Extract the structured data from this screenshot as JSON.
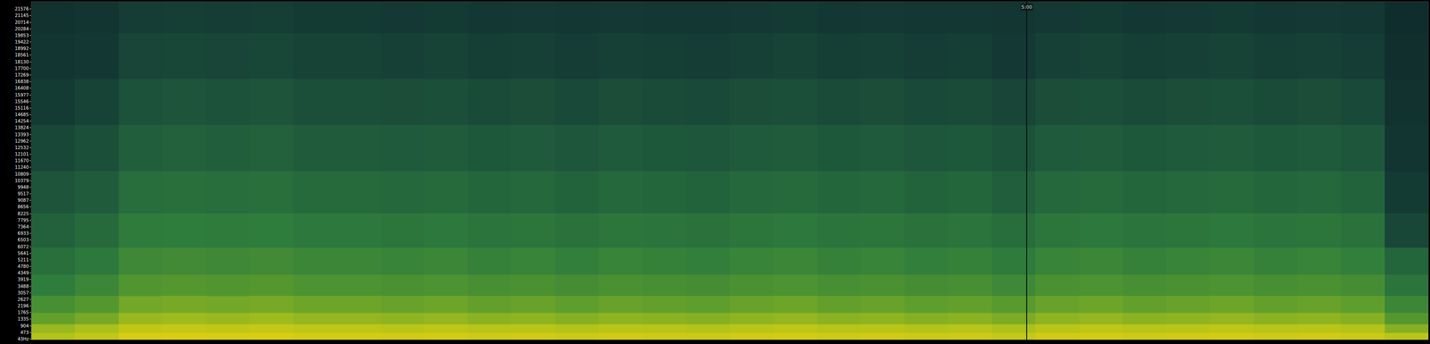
{
  "chart_data": {
    "type": "heatmap",
    "x": [
      0,
      1,
      2,
      3,
      4,
      5,
      6,
      7,
      8,
      9,
      10,
      11,
      12,
      13,
      14,
      15,
      16,
      17,
      18,
      19,
      20,
      21,
      22,
      23,
      24,
      25,
      26,
      27,
      28,
      29,
      30,
      31
    ],
    "y": [
      200,
      700,
      1300,
      2200,
      3500,
      5000,
      7000,
      9500,
      12500,
      15500,
      18500,
      21500
    ],
    "z": [
      [
        84,
        88,
        95,
        96,
        95,
        96,
        94,
        94,
        93,
        94,
        92,
        93,
        91,
        93,
        92,
        91,
        93,
        94,
        92,
        93,
        91,
        92,
        89,
        93,
        94,
        92,
        93,
        94,
        92,
        93,
        91,
        86
      ],
      [
        77,
        81,
        88,
        89,
        88,
        89,
        87,
        87,
        86,
        87,
        85,
        86,
        84,
        86,
        85,
        84,
        86,
        87,
        85,
        86,
        84,
        85,
        82,
        86,
        87,
        85,
        86,
        87,
        85,
        86,
        84,
        73
      ],
      [
        66,
        70,
        77,
        78,
        77,
        78,
        76,
        76,
        75,
        76,
        74,
        75,
        73,
        75,
        74,
        73,
        75,
        76,
        74,
        75,
        73,
        74,
        71,
        75,
        76,
        74,
        75,
        76,
        74,
        75,
        73,
        62
      ],
      [
        58,
        62,
        69,
        70,
        69,
        70,
        68,
        68,
        67,
        68,
        66,
        67,
        65,
        67,
        66,
        65,
        67,
        68,
        66,
        67,
        65,
        66,
        63,
        67,
        68,
        66,
        67,
        68,
        66,
        67,
        65,
        54
      ],
      [
        50,
        54,
        61,
        62,
        61,
        62,
        60,
        60,
        59,
        60,
        58,
        59,
        57,
        59,
        58,
        57,
        59,
        60,
        58,
        59,
        57,
        58,
        55,
        59,
        60,
        58,
        59,
        60,
        58,
        59,
        57,
        46
      ],
      [
        44,
        48,
        55,
        56,
        55,
        56,
        54,
        54,
        53,
        54,
        52,
        53,
        51,
        53,
        52,
        51,
        53,
        54,
        52,
        53,
        51,
        52,
        49,
        53,
        54,
        52,
        53,
        54,
        52,
        53,
        51,
        40
      ],
      [
        38,
        42,
        49,
        50,
        49,
        50,
        48,
        48,
        47,
        48,
        46,
        47,
        45,
        47,
        46,
        45,
        47,
        48,
        46,
        47,
        45,
        46,
        43,
        47,
        48,
        46,
        47,
        48,
        46,
        47,
        45,
        26
      ],
      [
        32,
        36,
        43,
        44,
        43,
        44,
        42,
        42,
        41,
        42,
        40,
        41,
        39,
        41,
        40,
        39,
        41,
        42,
        40,
        41,
        39,
        40,
        37,
        41,
        42,
        40,
        41,
        42,
        40,
        41,
        39,
        20
      ],
      [
        26,
        30,
        37,
        38,
        37,
        38,
        36,
        36,
        35,
        36,
        34,
        35,
        33,
        35,
        34,
        33,
        35,
        36,
        34,
        35,
        33,
        34,
        31,
        35,
        36,
        34,
        35,
        36,
        34,
        35,
        33,
        14
      ],
      [
        20,
        24,
        31,
        32,
        31,
        32,
        30,
        30,
        29,
        30,
        28,
        29,
        27,
        29,
        28,
        27,
        29,
        30,
        28,
        29,
        27,
        28,
        25,
        29,
        30,
        28,
        29,
        30,
        28,
        29,
        27,
        10
      ],
      [
        14,
        18,
        25,
        26,
        25,
        26,
        24,
        24,
        23,
        24,
        22,
        23,
        21,
        23,
        22,
        21,
        23,
        24,
        22,
        23,
        21,
        22,
        19,
        23,
        24,
        22,
        23,
        24,
        22,
        23,
        21,
        6
      ],
      [
        10,
        14,
        21,
        22,
        21,
        22,
        20,
        20,
        19,
        20,
        18,
        19,
        17,
        19,
        18,
        17,
        19,
        20,
        18,
        19,
        17,
        18,
        15,
        19,
        20,
        18,
        19,
        20,
        18,
        19,
        17,
        4
      ]
    ],
    "zlim": [
      0,
      100
    ],
    "xlim": [
      -0.5,
      31.5
    ],
    "ylim": [
      0,
      22050
    ],
    "yticks": [
      21576,
      21145,
      20714,
      20284,
      19853,
      19422,
      18992,
      18561,
      18130,
      17700,
      17269,
      16838,
      16408,
      15977,
      15546,
      15116,
      14685,
      14254,
      13824,
      13393,
      12962,
      12532,
      12101,
      11670,
      11240,
      10809,
      10379,
      9948,
      9517,
      9087,
      8656,
      8225,
      7795,
      7364,
      6933,
      6503,
      6072,
      5641,
      5211,
      4780,
      4349,
      3919,
      3488,
      3057,
      2627,
      2196,
      1765,
      1335,
      904,
      473,
      {
        "value": 43,
        "label": "43Hz"
      }
    ],
    "tick_labels": "y",
    "grid": false,
    "annotations": [
      {
        "x": 22.3,
        "text": "5:00"
      }
    ]
  }
}
